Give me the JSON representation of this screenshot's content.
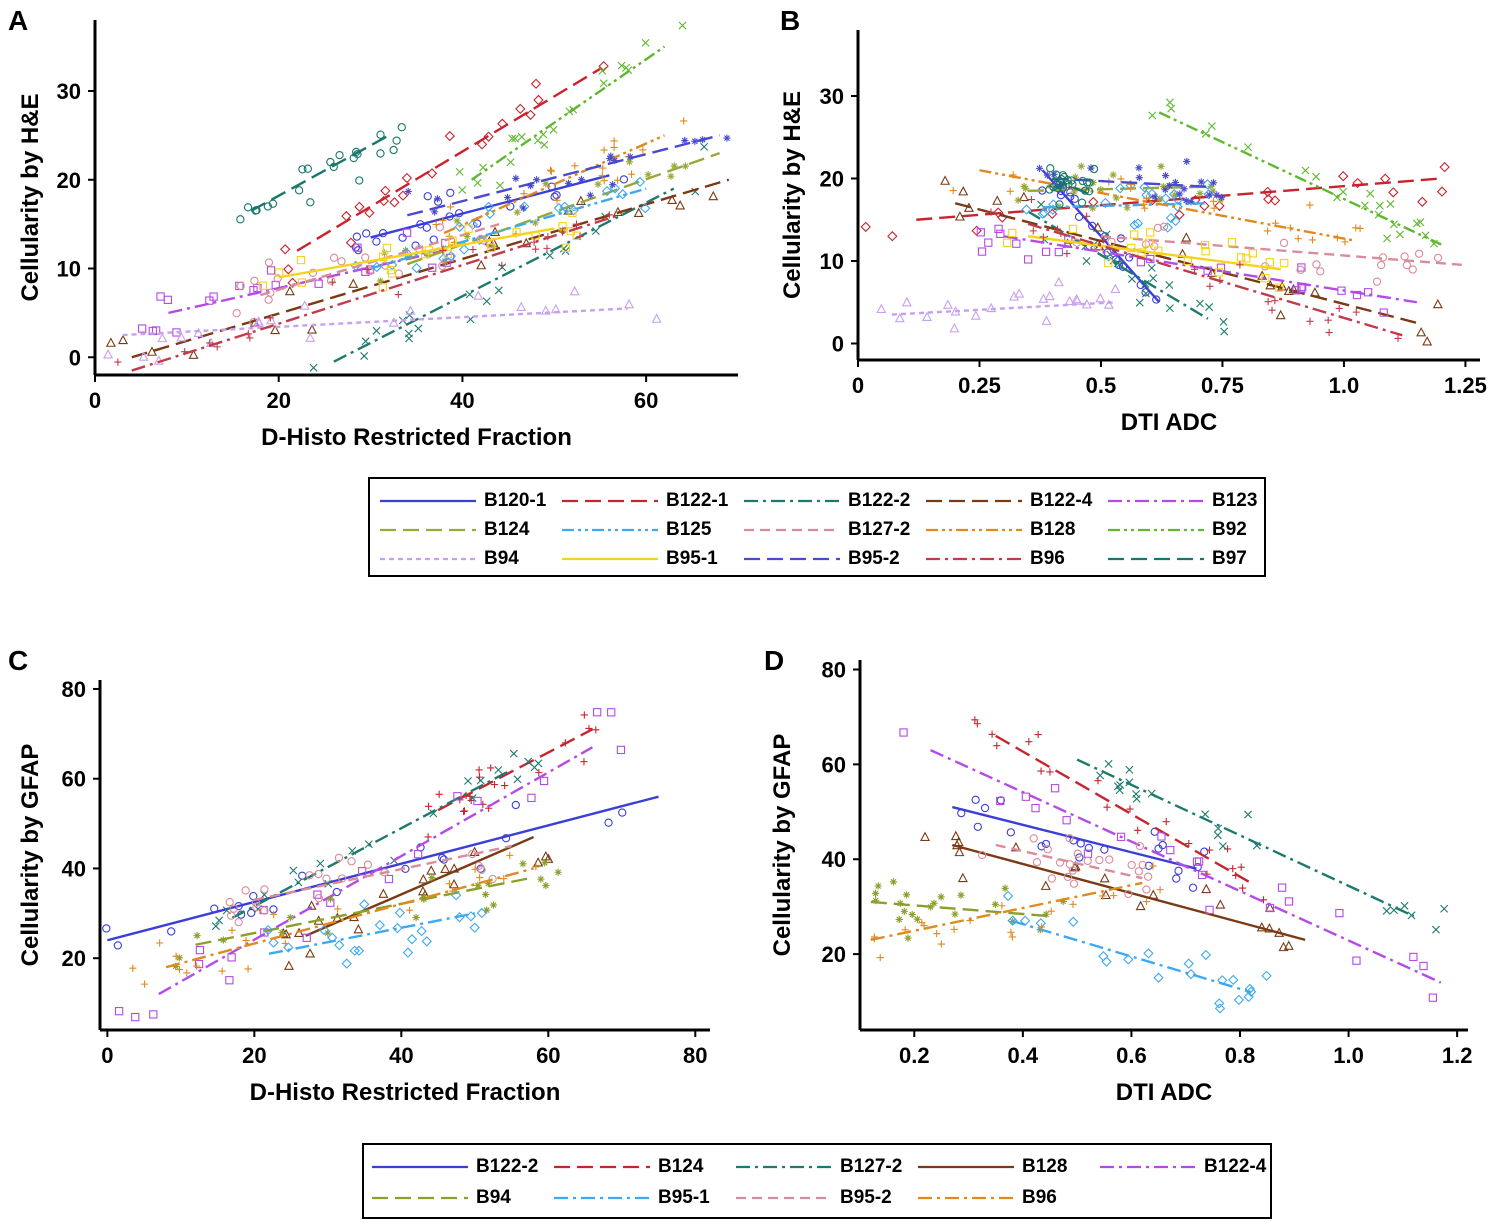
{
  "figure": {
    "panel_labels": [
      "A",
      "B",
      "C",
      "D"
    ]
  },
  "legend_top": {
    "items": [
      {
        "label": "B120-1",
        "color": "#3b3fd8",
        "dash": "solid"
      },
      {
        "label": "B122-1",
        "color": "#c8242f",
        "dash": "longdash"
      },
      {
        "label": "B122-2",
        "color": "#1e7a6e",
        "dash": "dashdot"
      },
      {
        "label": "B122-4",
        "color": "#7a3a14",
        "dash": "longdash"
      },
      {
        "label": "B123",
        "color": "#b54ae8",
        "dash": "dashdot"
      },
      {
        "label": "B124",
        "color": "#9aa83a",
        "dash": "longdash"
      },
      {
        "label": "B125",
        "color": "#3fa9ef",
        "dash": "dashdotdot"
      },
      {
        "label": "B127-2",
        "color": "#d98c9a",
        "dash": "dash"
      },
      {
        "label": "B128",
        "color": "#e08a1e",
        "dash": "dashdotdot"
      },
      {
        "label": "B92",
        "color": "#5fb82f",
        "dash": "dashdotdot"
      },
      {
        "label": "B94",
        "color": "#c8a0f0",
        "dash": "shortdash"
      },
      {
        "label": "B95-1",
        "color": "#f5d31a",
        "dash": "solid"
      },
      {
        "label": "B95-2",
        "color": "#4a4ad0",
        "dash": "longdash"
      },
      {
        "label": "B96",
        "color": "#c23b4a",
        "dash": "dashdot"
      },
      {
        "label": "B97",
        "color": "#18766a",
        "dash": "longdash"
      }
    ]
  },
  "legend_bottom": {
    "items": [
      {
        "label": "B122-2",
        "color": "#3b3fd8",
        "dash": "solid"
      },
      {
        "label": "B124",
        "color": "#c8242f",
        "dash": "longdash"
      },
      {
        "label": "B127-2",
        "color": "#1e7a6e",
        "dash": "dashdot"
      },
      {
        "label": "B128",
        "color": "#7a3a14",
        "dash": "solid"
      },
      {
        "label": "B122-4",
        "color": "#b54ae8",
        "dash": "dashdot"
      },
      {
        "label": "B94",
        "color": "#8aa02a",
        "dash": "longdash"
      },
      {
        "label": "B95-1",
        "color": "#3fa9ef",
        "dash": "dashdot"
      },
      {
        "label": "B95-2",
        "color": "#d98c9a",
        "dash": "dash"
      },
      {
        "label": "B96",
        "color": "#e08a1e",
        "dash": "dashdot"
      }
    ]
  },
  "chart_data": [
    {
      "panel": "A",
      "type": "scatter",
      "xlabel": "D-Histo Restricted Fraction",
      "ylabel": "Cellularity by H&E",
      "xlim": [
        0,
        70
      ],
      "ylim": [
        -2,
        38
      ],
      "xticks": [
        0,
        20,
        40,
        60
      ],
      "yticks": [
        0,
        10,
        20,
        30
      ],
      "series": [
        {
          "name": "B120-1",
          "color": "#3b3fd8",
          "dash": "solid",
          "marker": "circle",
          "fit": [
            [
              30,
              13.5
            ],
            [
              56,
              20.5
            ]
          ]
        },
        {
          "name": "B122-1",
          "color": "#c8242f",
          "dash": "longdash",
          "marker": "diamond",
          "fit": [
            [
              22,
              12
            ],
            [
              55,
              32.5
            ]
          ]
        },
        {
          "name": "B122-2",
          "color": "#1e7a6e",
          "dash": "dashdot",
          "marker": "x",
          "fit": [
            [
              26,
              -0.5
            ],
            [
              63,
              19
            ]
          ]
        },
        {
          "name": "B122-4",
          "color": "#7a3a14",
          "dash": "longdash",
          "marker": "triangle",
          "fit": [
            [
              4,
              0
            ],
            [
              69,
              20
            ]
          ]
        },
        {
          "name": "B123",
          "color": "#b54ae8",
          "dash": "dashdot",
          "marker": "square",
          "fit": [
            [
              8,
              5
            ],
            [
              38,
              12
            ]
          ]
        },
        {
          "name": "B124",
          "color": "#9aa83a",
          "dash": "longdash",
          "marker": "star",
          "fit": [
            [
              34,
              10.5
            ],
            [
              68,
              23
            ]
          ]
        },
        {
          "name": "B125",
          "color": "#3fa9ef",
          "dash": "dashdotdot",
          "marker": "diamond",
          "fit": [
            [
              30,
              10
            ],
            [
              60,
              19
            ]
          ]
        },
        {
          "name": "B127-2",
          "color": "#d98c9a",
          "dash": "dash",
          "marker": "circle",
          "fit": [
            [
              18,
              7
            ],
            [
              44,
              15
            ]
          ]
        },
        {
          "name": "B128",
          "color": "#e08a1e",
          "dash": "dashdotdot",
          "marker": "plus",
          "fit": [
            [
              38,
              14
            ],
            [
              62,
              25
            ]
          ]
        },
        {
          "name": "B92",
          "color": "#5fb82f",
          "dash": "dashdotdot",
          "marker": "x",
          "fit": [
            [
              41,
              20
            ],
            [
              62,
              35
            ]
          ]
        },
        {
          "name": "B94",
          "color": "#c8a0f0",
          "dash": "shortdash",
          "marker": "triangle",
          "fit": [
            [
              3,
              2.5
            ],
            [
              58,
              5.5
            ]
          ]
        },
        {
          "name": "B95-1",
          "color": "#f5d31a",
          "dash": "solid",
          "marker": "square",
          "fit": [
            [
              20,
              9
            ],
            [
              50,
              14.5
            ]
          ]
        },
        {
          "name": "B95-2",
          "color": "#4a4ad0",
          "dash": "longdash",
          "marker": "star",
          "fit": [
            [
              34,
              16
            ],
            [
              68,
              25
            ]
          ]
        },
        {
          "name": "B96",
          "color": "#c23b4a",
          "dash": "dashdot",
          "marker": "plus",
          "fit": [
            [
              4,
              -1.5
            ],
            [
              57,
              16
            ]
          ]
        },
        {
          "name": "B97",
          "color": "#18766a",
          "dash": "longdash",
          "marker": "circle",
          "fit": [
            [
              17,
              16.5
            ],
            [
              32,
              25
            ]
          ]
        }
      ]
    },
    {
      "panel": "B",
      "type": "scatter",
      "xlabel": "DTI ADC",
      "ylabel": "Cellularity by H&E",
      "xlim": [
        0,
        1.28
      ],
      "ylim": [
        -2,
        38
      ],
      "xticks": [
        0,
        0.25,
        0.5,
        0.75,
        1.0,
        1.25
      ],
      "xticklabels": [
        "0",
        "0.25",
        "0.5",
        "0.75",
        "1.0",
        "1.25"
      ],
      "yticks": [
        0,
        10,
        20,
        30
      ],
      "series": [
        {
          "name": "B120-1",
          "color": "#3b3fd8",
          "dash": "solid",
          "marker": "circle",
          "fit": [
            [
              0.38,
              21
            ],
            [
              0.62,
              5
            ]
          ]
        },
        {
          "name": "B122-1",
          "color": "#c8242f",
          "dash": "longdash",
          "marker": "diamond",
          "fit": [
            [
              0.12,
              15
            ],
            [
              1.2,
              20
            ]
          ]
        },
        {
          "name": "B122-2",
          "color": "#1e7a6e",
          "dash": "dashdot",
          "marker": "x",
          "fit": [
            [
              0.35,
              16
            ],
            [
              0.72,
              3
            ]
          ]
        },
        {
          "name": "B122-4",
          "color": "#7a3a14",
          "dash": "longdash",
          "marker": "triangle",
          "fit": [
            [
              0.2,
              17
            ],
            [
              1.15,
              2.5
            ]
          ]
        },
        {
          "name": "B123",
          "color": "#b54ae8",
          "dash": "dashdot",
          "marker": "square",
          "fit": [
            [
              0.3,
              13
            ],
            [
              1.15,
              5
            ]
          ]
        },
        {
          "name": "B124",
          "color": "#9aa83a",
          "dash": "longdash",
          "marker": "star",
          "fit": [
            [
              0.35,
              18.5
            ],
            [
              0.72,
              19
            ]
          ]
        },
        {
          "name": "B125",
          "color": "#3fa9ef",
          "dash": "dashdotdot",
          "marker": "diamond",
          "fit": [
            [
              0.38,
              16.5
            ],
            [
              0.72,
              17
            ]
          ]
        },
        {
          "name": "B127-2",
          "color": "#d98c9a",
          "dash": "dash",
          "marker": "circle",
          "fit": [
            [
              0.5,
              13
            ],
            [
              1.25,
              9.5
            ]
          ]
        },
        {
          "name": "B128",
          "color": "#e08a1e",
          "dash": "dashdotdot",
          "marker": "plus",
          "fit": [
            [
              0.25,
              21
            ],
            [
              1.02,
              12.5
            ]
          ]
        },
        {
          "name": "B92",
          "color": "#5fb82f",
          "dash": "dashdotdot",
          "marker": "x",
          "fit": [
            [
              0.62,
              28
            ],
            [
              1.2,
              12
            ]
          ]
        },
        {
          "name": "B94",
          "color": "#c8a0f0",
          "dash": "shortdash",
          "marker": "triangle",
          "fit": [
            [
              0.07,
              3.5
            ],
            [
              0.53,
              5
            ]
          ]
        },
        {
          "name": "B95-1",
          "color": "#f5d31a",
          "dash": "solid",
          "marker": "square",
          "fit": [
            [
              0.35,
              13
            ],
            [
              0.87,
              9
            ]
          ]
        },
        {
          "name": "B95-2",
          "color": "#4a4ad0",
          "dash": "longdash",
          "marker": "star",
          "fit": [
            [
              0.4,
              20
            ],
            [
              0.72,
              19
            ]
          ]
        },
        {
          "name": "B96",
          "color": "#c23b4a",
          "dash": "dashdot",
          "marker": "plus",
          "fit": [
            [
              0.35,
              14.5
            ],
            [
              1.12,
              1
            ]
          ]
        },
        {
          "name": "B97",
          "color": "#18766a",
          "dash": "longdash",
          "marker": "circle",
          "fit": [
            [
              0.4,
              20
            ],
            [
              0.48,
              18
            ]
          ]
        }
      ]
    },
    {
      "panel": "C",
      "type": "scatter",
      "xlabel": "D-Histo Restricted Fraction",
      "ylabel": "Cellularity by GFAP",
      "xlim": [
        -1,
        82
      ],
      "ylim": [
        4,
        82
      ],
      "xticks": [
        0,
        20,
        40,
        60,
        80
      ],
      "yticks": [
        20,
        40,
        60,
        80
      ],
      "series": [
        {
          "name": "B122-2",
          "color": "#3b3fd8",
          "dash": "solid",
          "marker": "circle",
          "fit": [
            [
              0,
              24
            ],
            [
              75,
              56
            ]
          ]
        },
        {
          "name": "B124",
          "color": "#c8242f",
          "dash": "longdash",
          "marker": "plus",
          "fit": [
            [
              45,
              53
            ],
            [
              66,
              71
            ]
          ]
        },
        {
          "name": "B127-2",
          "color": "#1e7a6e",
          "dash": "dashdot",
          "marker": "x",
          "fit": [
            [
              17,
              29
            ],
            [
              55,
              62
            ]
          ]
        },
        {
          "name": "B128",
          "color": "#7a3a14",
          "dash": "solid",
          "marker": "triangle",
          "fit": [
            [
              27,
              25
            ],
            [
              58,
              47
            ]
          ]
        },
        {
          "name": "B122-4",
          "color": "#b54ae8",
          "dash": "dashdot",
          "marker": "square",
          "fit": [
            [
              7,
              12
            ],
            [
              66,
              67
            ]
          ]
        },
        {
          "name": "B94",
          "color": "#8aa02a",
          "dash": "longdash",
          "marker": "star",
          "fit": [
            [
              12,
              23
            ],
            [
              58,
              38
            ]
          ]
        },
        {
          "name": "B95-1",
          "color": "#3fa9ef",
          "dash": "dashdot",
          "marker": "diamond",
          "fit": [
            [
              22,
              21
            ],
            [
              50,
              30
            ]
          ]
        },
        {
          "name": "B95-2",
          "color": "#d98c9a",
          "dash": "dash",
          "marker": "circle",
          "fit": [
            [
              20,
              33
            ],
            [
              55,
              45
            ]
          ]
        },
        {
          "name": "B96",
          "color": "#e08a1e",
          "dash": "dashdot",
          "marker": "plus",
          "fit": [
            [
              8,
              18
            ],
            [
              58,
              40
            ]
          ]
        }
      ]
    },
    {
      "panel": "D",
      "type": "scatter",
      "xlabel": "DTI ADC",
      "ylabel": "Cellularity by GFAP",
      "xlim": [
        0.1,
        1.22
      ],
      "ylim": [
        4,
        82
      ],
      "xticks": [
        0.2,
        0.4,
        0.6,
        0.8,
        1.0,
        1.2
      ],
      "xticklabels": [
        "0.2",
        "0.4",
        "0.6",
        "0.8",
        "1.0",
        "1.2"
      ],
      "yticks": [
        20,
        40,
        60,
        80
      ],
      "series": [
        {
          "name": "B122-2",
          "color": "#3b3fd8",
          "dash": "solid",
          "marker": "circle",
          "fit": [
            [
              0.27,
              51
            ],
            [
              0.72,
              38
            ]
          ]
        },
        {
          "name": "B124",
          "color": "#c8242f",
          "dash": "longdash",
          "marker": "plus",
          "fit": [
            [
              0.35,
              66
            ],
            [
              0.82,
              35
            ]
          ]
        },
        {
          "name": "B127-2",
          "color": "#1e7a6e",
          "dash": "dashdot",
          "marker": "x",
          "fit": [
            [
              0.5,
              61
            ],
            [
              1.12,
              28
            ]
          ]
        },
        {
          "name": "B128",
          "color": "#7a3a14",
          "dash": "solid",
          "marker": "triangle",
          "fit": [
            [
              0.27,
              43
            ],
            [
              0.92,
              23
            ]
          ]
        },
        {
          "name": "B122-4",
          "color": "#b54ae8",
          "dash": "dashdot",
          "marker": "square",
          "fit": [
            [
              0.23,
              63
            ],
            [
              1.17,
              14
            ]
          ]
        },
        {
          "name": "B94",
          "color": "#8aa02a",
          "dash": "longdash",
          "marker": "star",
          "fit": [
            [
              0.12,
              31
            ],
            [
              0.45,
              28
            ]
          ]
        },
        {
          "name": "B95-1",
          "color": "#3fa9ef",
          "dash": "dashdot",
          "marker": "diamond",
          "fit": [
            [
              0.38,
              27
            ],
            [
              0.82,
              12
            ]
          ]
        },
        {
          "name": "B95-2",
          "color": "#d98c9a",
          "dash": "dash",
          "marker": "circle",
          "fit": [
            [
              0.35,
              43
            ],
            [
              0.62,
              36
            ]
          ]
        },
        {
          "name": "B96",
          "color": "#e08a1e",
          "dash": "dashdot",
          "marker": "plus",
          "fit": [
            [
              0.12,
              23
            ],
            [
              0.62,
              35
            ]
          ]
        }
      ]
    }
  ]
}
